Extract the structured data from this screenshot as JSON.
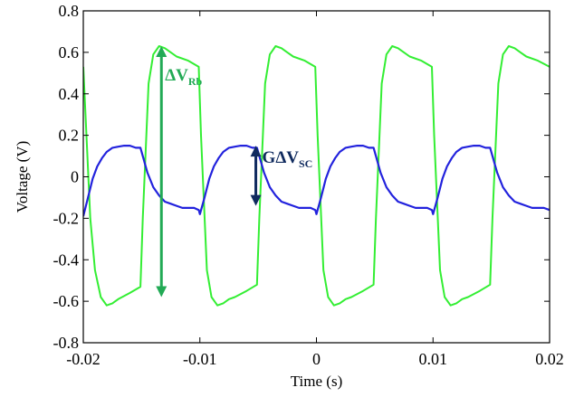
{
  "chart_data": {
    "type": "line",
    "title": "",
    "xlabel": "Time (s)",
    "ylabel": "Voltage (V)",
    "xlim": [
      -0.02,
      0.02
    ],
    "ylim": [
      -0.8,
      0.8
    ],
    "grid": false,
    "legend": "none",
    "x_ticks": [
      "-0.02",
      "-0.01",
      "0",
      "0.01",
      "0.02"
    ],
    "y_ticks": [
      "0.8",
      "0.6",
      "0.4",
      "0.2",
      "0",
      "-0.2",
      "-0.4",
      "-0.6",
      "-0.8"
    ],
    "x_tick_values": [
      -0.02,
      -0.01,
      0,
      0.01,
      0.02
    ],
    "y_tick_values": [
      0.8,
      0.6,
      0.4,
      0.2,
      0,
      -0.2,
      -0.4,
      -0.6,
      -0.8
    ],
    "series": [
      {
        "color": "#33ee33",
        "x": [
          -0.02,
          -0.0194,
          -0.019,
          -0.0185,
          -0.018,
          -0.0175,
          -0.017,
          -0.016,
          -0.0151,
          -0.0149,
          -0.0144,
          -0.014,
          -0.0135,
          -0.013,
          -0.0125,
          -0.012,
          -0.011,
          -0.0101,
          -0.0099,
          -0.0094,
          -0.009,
          -0.0085,
          -0.008,
          -0.0075,
          -0.007,
          -0.006,
          -0.0051,
          -0.0049,
          -0.0044,
          -0.004,
          -0.0035,
          -0.003,
          -0.0025,
          -0.002,
          -0.001,
          -0.0001,
          0.0001,
          0.0006,
          0.001,
          0.0015,
          0.002,
          0.0025,
          0.003,
          0.004,
          0.0049,
          0.0051,
          0.0056,
          0.006,
          0.0065,
          0.007,
          0.0075,
          0.008,
          0.009,
          0.0099,
          0.0101,
          0.0106,
          0.011,
          0.0115,
          0.012,
          0.0125,
          0.013,
          0.014,
          0.0149,
          0.0151,
          0.0156,
          0.016,
          0.0165,
          0.017,
          0.0175,
          0.018,
          0.019,
          0.02
        ],
        "y": [
          0.53,
          -0.2,
          -0.45,
          -0.58,
          -0.62,
          -0.61,
          -0.59,
          -0.56,
          -0.53,
          -0.2,
          0.45,
          0.59,
          0.63,
          0.62,
          0.6,
          0.58,
          0.56,
          0.53,
          0.2,
          -0.45,
          -0.58,
          -0.62,
          -0.61,
          -0.59,
          -0.58,
          -0.55,
          -0.52,
          -0.2,
          0.45,
          0.59,
          0.63,
          0.62,
          0.6,
          0.58,
          0.56,
          0.53,
          0.2,
          -0.45,
          -0.58,
          -0.62,
          -0.61,
          -0.59,
          -0.58,
          -0.55,
          -0.52,
          -0.2,
          0.45,
          0.59,
          0.63,
          0.62,
          0.6,
          0.58,
          0.56,
          0.53,
          0.2,
          -0.45,
          -0.58,
          -0.62,
          -0.61,
          -0.59,
          -0.58,
          -0.55,
          -0.52,
          -0.2,
          0.45,
          0.59,
          0.63,
          0.62,
          0.6,
          0.58,
          0.56,
          0.53
        ]
      },
      {
        "color": "#2222dd",
        "x": [
          -0.02,
          -0.0196,
          -0.0192,
          -0.0188,
          -0.0184,
          -0.018,
          -0.0175,
          -0.017,
          -0.0165,
          -0.016,
          -0.0155,
          -0.0151,
          -0.0149,
          -0.0145,
          -0.014,
          -0.0135,
          -0.013,
          -0.0125,
          -0.012,
          -0.0115,
          -0.011,
          -0.0105,
          -0.0101,
          -0.01,
          -0.0096,
          -0.0092,
          -0.0088,
          -0.0084,
          -0.008,
          -0.0075,
          -0.007,
          -0.0065,
          -0.006,
          -0.0055,
          -0.0051,
          -0.0049,
          -0.0045,
          -0.004,
          -0.0035,
          -0.003,
          -0.0025,
          -0.002,
          -0.0015,
          -0.001,
          -0.0005,
          -0.0001,
          0.0,
          0.0004,
          0.0008,
          0.0012,
          0.0016,
          0.002,
          0.0025,
          0.003,
          0.0035,
          0.004,
          0.0045,
          0.0049,
          0.0051,
          0.0055,
          0.006,
          0.0065,
          0.007,
          0.0075,
          0.008,
          0.0085,
          0.009,
          0.0095,
          0.0099,
          0.01,
          0.0104,
          0.0108,
          0.0112,
          0.0116,
          0.012,
          0.0125,
          0.013,
          0.0135,
          0.014,
          0.0145,
          0.0149,
          0.0151,
          0.0155,
          0.016,
          0.0165,
          0.017,
          0.0175,
          0.018,
          0.0185,
          0.019,
          0.0195,
          0.02
        ],
        "y": [
          -0.19,
          -0.1,
          -0.01,
          0.05,
          0.09,
          0.12,
          0.14,
          0.145,
          0.15,
          0.15,
          0.14,
          0.14,
          0.1,
          0.02,
          -0.05,
          -0.09,
          -0.12,
          -0.13,
          -0.14,
          -0.15,
          -0.15,
          -0.15,
          -0.16,
          -0.18,
          -0.1,
          -0.01,
          0.05,
          0.09,
          0.12,
          0.14,
          0.145,
          0.15,
          0.15,
          0.14,
          0.14,
          0.1,
          0.02,
          -0.05,
          -0.09,
          -0.12,
          -0.13,
          -0.14,
          -0.15,
          -0.15,
          -0.15,
          -0.16,
          -0.18,
          -0.1,
          -0.01,
          0.05,
          0.09,
          0.12,
          0.14,
          0.145,
          0.15,
          0.15,
          0.14,
          0.14,
          0.1,
          0.02,
          -0.05,
          -0.09,
          -0.12,
          -0.13,
          -0.14,
          -0.15,
          -0.15,
          -0.15,
          -0.16,
          -0.18,
          -0.1,
          -0.01,
          0.05,
          0.09,
          0.12,
          0.14,
          0.145,
          0.15,
          0.15,
          0.14,
          0.14,
          0.1,
          0.02,
          -0.05,
          -0.09,
          -0.12,
          -0.13,
          -0.14,
          -0.15,
          -0.15,
          -0.15,
          -0.16
        ]
      }
    ],
    "annotations": [
      {
        "main": "ΔV",
        "sub": "Rb",
        "color": "#22aa55",
        "x": -0.0133,
        "y_from": 0.63,
        "y_to": -0.58
      },
      {
        "main": "GΔV",
        "sub": "SC",
        "color": "#0f2a5e",
        "x": -0.0052,
        "y_from": 0.15,
        "y_to": -0.14
      }
    ]
  }
}
